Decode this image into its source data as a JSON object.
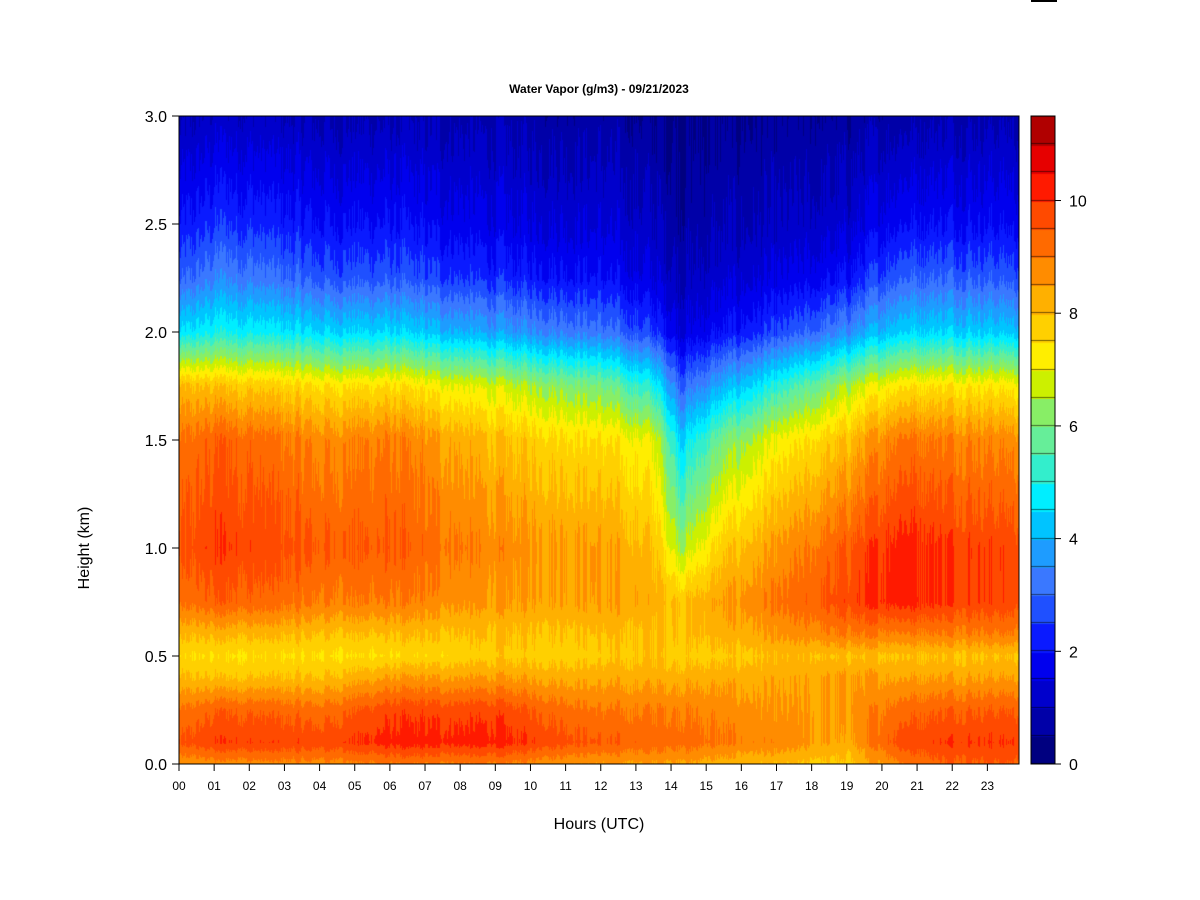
{
  "chart_data": {
    "type": "heatmap",
    "title": "Water Vapor (g/m3) - 09/21/2023",
    "xlabel": "Hours (UTC)",
    "ylabel": "Height (km)",
    "x_tick_labels": [
      "00",
      "01",
      "02",
      "03",
      "04",
      "05",
      "06",
      "07",
      "08",
      "09",
      "10",
      "11",
      "12",
      "13",
      "14",
      "15",
      "16",
      "17",
      "18",
      "19",
      "20",
      "21",
      "22",
      "23"
    ],
    "xlim": [
      0,
      23.9
    ],
    "y_tick_labels": [
      "0.0",
      "0.5",
      "1.0",
      "1.5",
      "2.0",
      "2.5",
      "3.0"
    ],
    "ylim": [
      0,
      3.0
    ],
    "colorbar": {
      "ticks": [
        "0",
        "2",
        "4",
        "6",
        "8",
        "10"
      ],
      "range": [
        0,
        11.5
      ],
      "bin_width": 0.5,
      "colors": [
        "#000080",
        "#0000a8",
        "#0000cc",
        "#0000ee",
        "#0a1aff",
        "#1f50ff",
        "#3a78ff",
        "#1e9cff",
        "#00c4ff",
        "#00eeff",
        "#33eecc",
        "#66ee99",
        "#88ee66",
        "#ccf000",
        "#ffee00",
        "#ffd000",
        "#ffb000",
        "#ff8c00",
        "#ff6a00",
        "#ff4a00",
        "#ff1a00",
        "#e60000",
        "#b00000",
        "#800000"
      ]
    },
    "z_units": "g/m3",
    "profile_heights_km": [
      0.0,
      0.1,
      0.25,
      0.4,
      0.5,
      0.6,
      0.75,
      1.0,
      1.5,
      1.75,
      2.0,
      2.25,
      2.5,
      3.0
    ],
    "profile_hours": [
      0,
      1.2,
      4,
      6,
      9,
      12,
      13.5,
      14.3,
      15.5,
      17,
      19,
      20.5,
      22,
      23.9
    ],
    "values": [
      [
        8.5,
        9.5,
        9.0,
        8.0,
        7.5,
        8.0,
        9.0,
        9.5,
        9.0,
        8.0,
        4.5,
        2.8,
        2.0,
        0.8
      ],
      [
        8.8,
        10.0,
        9.5,
        8.0,
        7.5,
        8.2,
        9.5,
        10.0,
        9.5,
        8.0,
        5.0,
        3.5,
        2.5,
        1.2
      ],
      [
        8.8,
        9.8,
        9.2,
        8.0,
        7.5,
        8.0,
        9.0,
        9.5,
        8.8,
        7.5,
        4.5,
        2.8,
        2.0,
        0.9
      ],
      [
        9.0,
        10.2,
        9.8,
        8.5,
        7.5,
        8.0,
        9.0,
        9.5,
        9.0,
        7.5,
        4.5,
        2.8,
        2.0,
        0.9
      ],
      [
        9.0,
        10.2,
        9.8,
        8.5,
        7.8,
        8.0,
        8.5,
        8.8,
        8.0,
        6.8,
        3.8,
        2.3,
        1.6,
        0.8
      ],
      [
        8.5,
        9.5,
        9.0,
        8.3,
        7.8,
        8.0,
        8.5,
        8.5,
        7.5,
        6.0,
        3.2,
        2.0,
        1.4,
        0.7
      ],
      [
        8.5,
        9.3,
        9.0,
        8.3,
        8.0,
        8.0,
        8.3,
        8.0,
        7.0,
        5.0,
        2.5,
        1.5,
        1.1,
        0.5
      ],
      [
        8.5,
        9.3,
        9.0,
        8.3,
        7.8,
        8.0,
        8.0,
        6.5,
        4.5,
        3.0,
        1.5,
        1.0,
        0.7,
        0.4
      ],
      [
        8.2,
        9.0,
        8.8,
        8.3,
        7.8,
        8.2,
        8.5,
        7.8,
        6.0,
        4.0,
        2.0,
        1.3,
        0.9,
        0.5
      ],
      [
        8.0,
        8.8,
        8.5,
        8.3,
        8.0,
        8.5,
        9.0,
        8.5,
        7.0,
        5.0,
        2.5,
        1.5,
        1.0,
        0.5
      ],
      [
        7.8,
        8.3,
        8.5,
        8.5,
        8.0,
        9.0,
        9.8,
        9.5,
        8.0,
        6.5,
        3.5,
        2.0,
        1.3,
        0.6
      ],
      [
        9.0,
        9.8,
        9.3,
        8.5,
        8.0,
        9.0,
        10.3,
        10.3,
        9.2,
        7.5,
        4.5,
        3.0,
        2.0,
        0.8
      ],
      [
        9.5,
        10.0,
        9.5,
        8.5,
        8.0,
        9.0,
        10.0,
        10.0,
        9.0,
        7.5,
        4.5,
        3.0,
        2.0,
        0.9
      ],
      [
        9.5,
        10.0,
        9.5,
        8.5,
        8.0,
        9.0,
        9.8,
        9.8,
        8.8,
        7.3,
        4.3,
        2.8,
        1.9,
        0.9
      ]
    ]
  }
}
